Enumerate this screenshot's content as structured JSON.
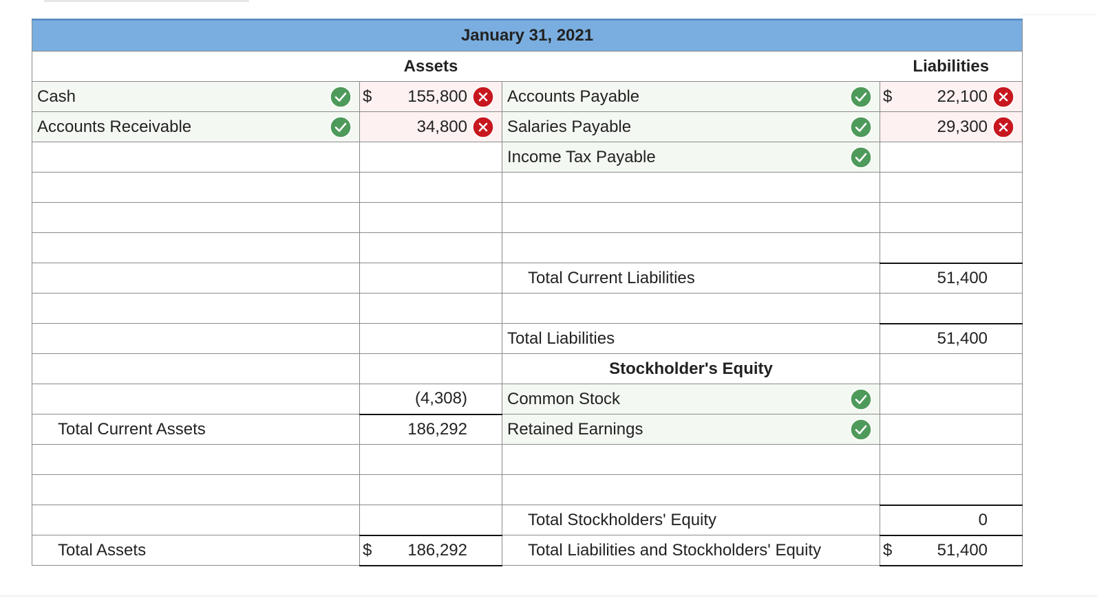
{
  "title": "January 31, 2021",
  "assets_heading": "Assets",
  "liabilities_heading": "Liabilities",
  "equity_heading": "Stockholder's Equity",
  "rows": [
    {
      "asset": "Cash",
      "asset_currency": "$",
      "asset_amount": "155,800",
      "liability": "Accounts Payable",
      "liability_currency": "$",
      "liability_amount": "22,100"
    },
    {
      "asset": "Accounts Receivable",
      "asset_amount": "34,800",
      "liability": "Salaries Payable",
      "liability_amount": "29,300"
    },
    {
      "liability": "Income Tax Payable"
    },
    {},
    {},
    {},
    {
      "liability": "Total Current Liabilities",
      "liability_amount": "51,400"
    },
    {},
    {
      "liability": "Total Liabilities",
      "liability_amount": "51,400"
    },
    {},
    {
      "asset_amount": "(4,308)",
      "liability": "Common Stock"
    },
    {
      "asset": "Total Current Assets",
      "asset_amount": "186,292",
      "liability": "Retained Earnings"
    },
    {},
    {},
    {
      "liability": "Total Stockholders' Equity",
      "liability_amount": "0"
    },
    {
      "asset": "Total Assets",
      "asset_currency": "$",
      "asset_amount": "186,292",
      "liability": "Total Liabilities and Stockholders' Equity",
      "liability_currency": "$",
      "liability_amount": "51,400"
    }
  ]
}
